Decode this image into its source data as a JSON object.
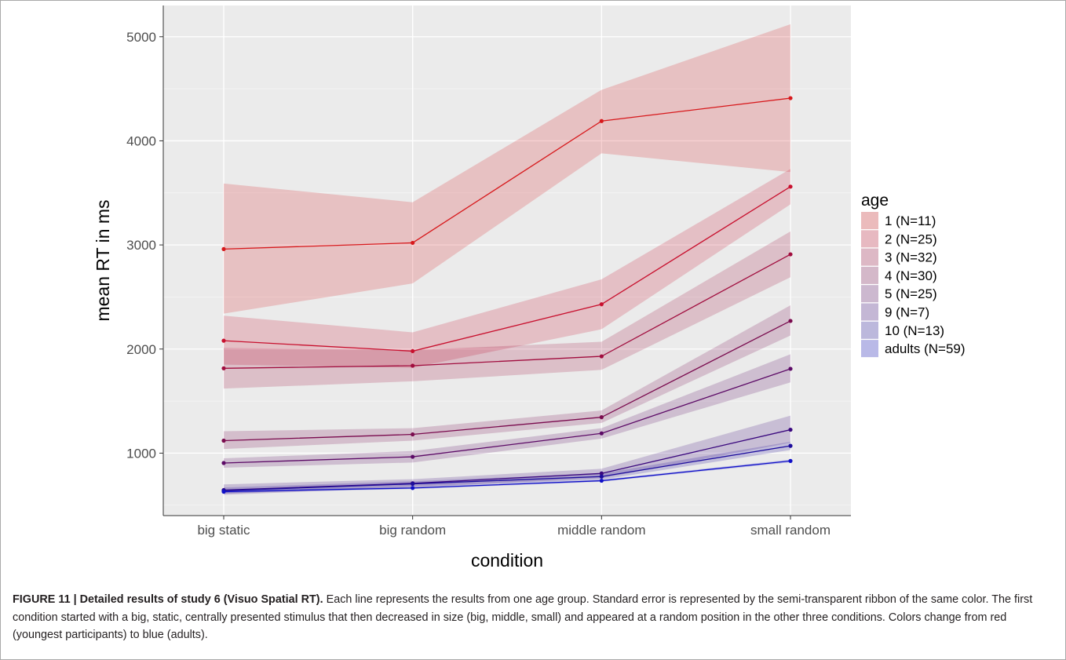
{
  "caption": {
    "label": "FIGURE 11 | Detailed results of study 6 (Visuo Spatial RT).",
    "text": "Each line represents the results from one age group. Standard error is represented by the semi-transparent ribbon of the same color. The first condition started with a big, static, centrally presented stimulus that then decreased in size (big, middle, small) and appeared at a random position in the other three conditions. Colors change from red (youngest participants) to blue (adults)."
  },
  "chart_data": {
    "type": "line",
    "title": "",
    "xlabel": "condition",
    "ylabel": "mean RT in ms",
    "categories": [
      "big static",
      "big random",
      "middle random",
      "small random"
    ],
    "ylim": [
      400,
      5300
    ],
    "yticks": [
      1000,
      2000,
      3000,
      4000,
      5000
    ],
    "grid": true,
    "legend": {
      "title": "age",
      "placement": "right"
    },
    "series": [
      {
        "name": "1 (N=11)",
        "color": "#d7191c",
        "values": [
          2960,
          3020,
          4190,
          4410
        ],
        "lower": [
          2340,
          2630,
          3880,
          3700
        ],
        "upper": [
          3590,
          3410,
          4490,
          5120
        ]
      },
      {
        "name": "2 (N=25)",
        "color": "#c8102e",
        "values": [
          2080,
          1980,
          2430,
          3560
        ],
        "lower": [
          1850,
          1820,
          2190,
          3390
        ],
        "upper": [
          2320,
          2160,
          2670,
          3730
        ]
      },
      {
        "name": "3 (N=32)",
        "color": "#a10d3e",
        "values": [
          1815,
          1840,
          1930,
          2910
        ],
        "lower": [
          1620,
          1690,
          1800,
          2690
        ],
        "upper": [
          2010,
          1990,
          2070,
          3130
        ]
      },
      {
        "name": "4 (N=30)",
        "color": "#7a0b4e",
        "values": [
          1120,
          1180,
          1345,
          2270
        ],
        "lower": [
          1040,
          1120,
          1290,
          2130
        ],
        "upper": [
          1210,
          1240,
          1410,
          2420
        ]
      },
      {
        "name": "5 (N=25)",
        "color": "#5c0a66",
        "values": [
          905,
          965,
          1190,
          1810
        ],
        "lower": [
          860,
          910,
          1140,
          1680
        ],
        "upper": [
          950,
          1020,
          1240,
          1950
        ]
      },
      {
        "name": "9 (N=7)",
        "color": "#3a087e",
        "values": [
          645,
          710,
          805,
          1225
        ],
        "lower": [
          600,
          670,
          760,
          1100
        ],
        "upper": [
          700,
          750,
          850,
          1360
        ]
      },
      {
        "name": "10 (N=13)",
        "color": "#1c0c9c",
        "values": [
          640,
          705,
          775,
          1070
        ],
        "lower": [
          610,
          680,
          745,
          1030
        ],
        "upper": [
          670,
          730,
          805,
          1110
        ]
      },
      {
        "name": "adults (N=59)",
        "color": "#1010c8",
        "values": [
          630,
          665,
          735,
          925
        ],
        "lower": [
          620,
          655,
          725,
          912
        ],
        "upper": [
          640,
          675,
          745,
          938
        ]
      }
    ]
  }
}
